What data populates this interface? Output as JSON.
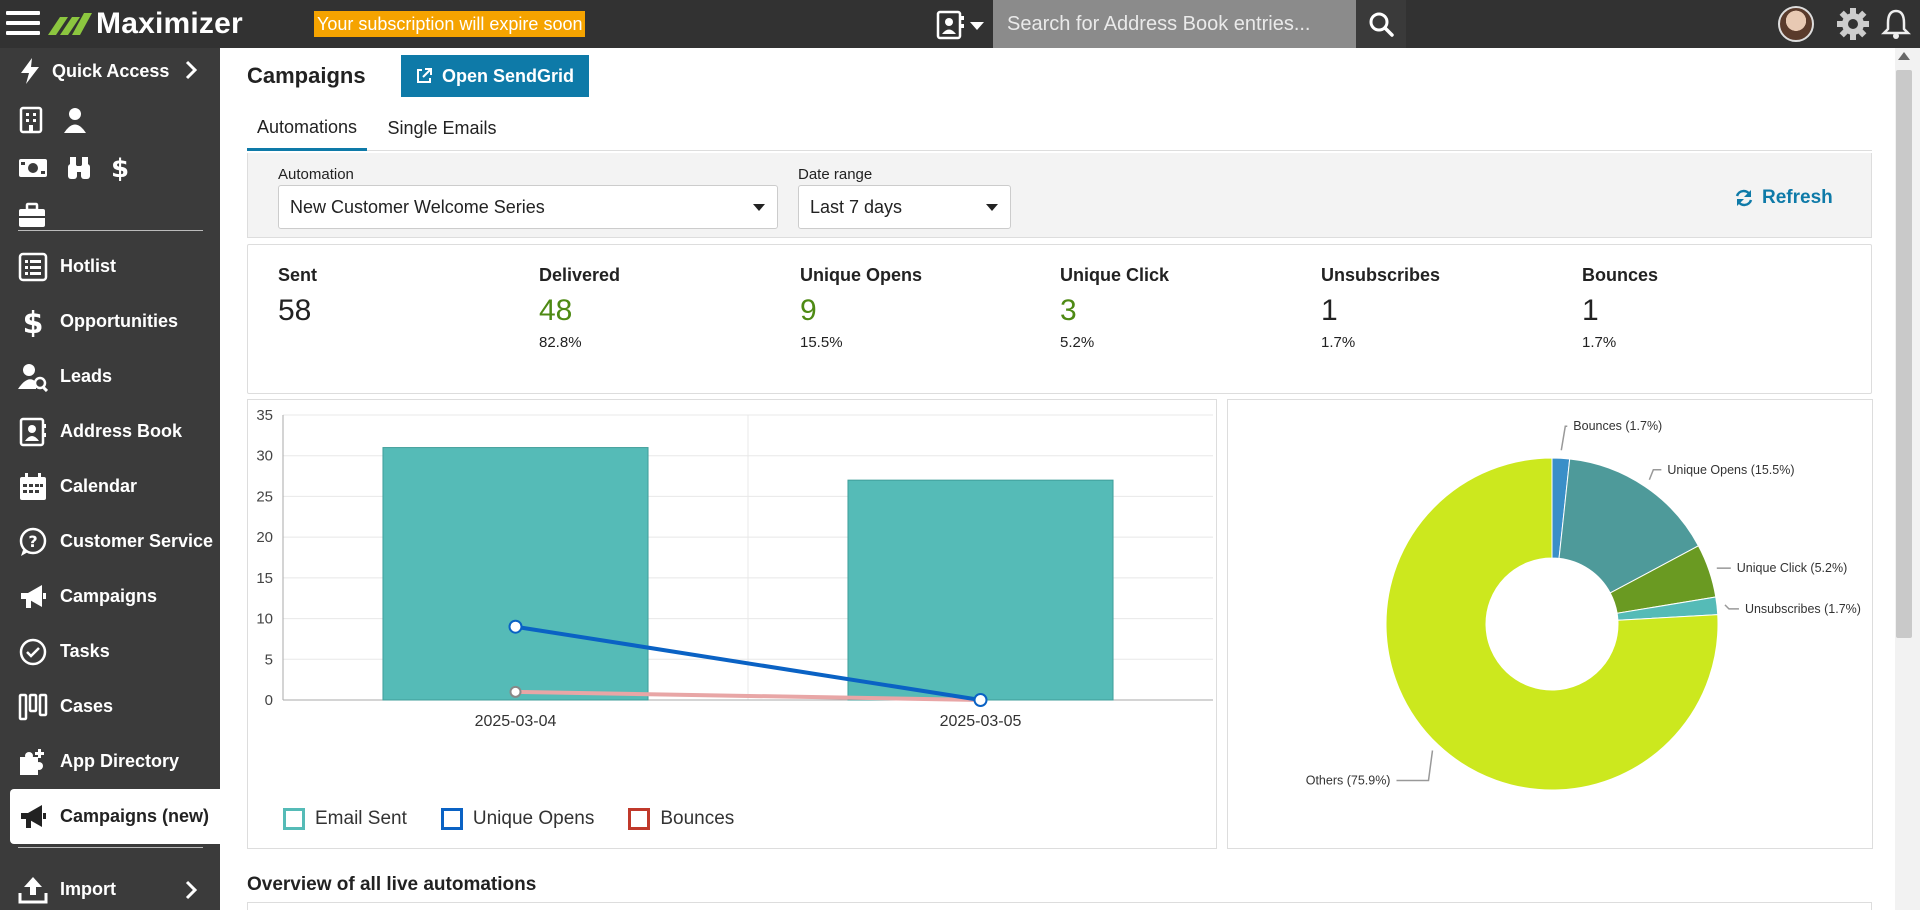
{
  "topbar": {
    "app_name": "Maximizer",
    "subscription_banner": "Your subscription will expire soon",
    "search_placeholder": "Search for Address Book entries..."
  },
  "sidebar": {
    "quick_access": "Quick Access",
    "items": [
      {
        "label": "Hotlist",
        "icon": "list-icon"
      },
      {
        "label": "Opportunities",
        "icon": "dollar-icon"
      },
      {
        "label": "Leads",
        "icon": "person-search-icon"
      },
      {
        "label": "Address Book",
        "icon": "address-book-icon"
      },
      {
        "label": "Calendar",
        "icon": "calendar-icon"
      },
      {
        "label": "Customer Service",
        "icon": "question-bubble-icon"
      },
      {
        "label": "Campaigns",
        "icon": "megaphone-icon"
      },
      {
        "label": "Tasks",
        "icon": "check-circle-icon"
      },
      {
        "label": "Cases",
        "icon": "cases-icon"
      },
      {
        "label": "App Directory",
        "icon": "puzzle-icon"
      },
      {
        "label": "Campaigns (new)",
        "icon": "megaphone-icon",
        "active": true
      },
      {
        "label": "Import",
        "icon": "upload-icon"
      }
    ]
  },
  "main": {
    "title": "Campaigns",
    "open_sendgrid": "Open SendGrid",
    "tabs": [
      {
        "label": "Automations",
        "active": true
      },
      {
        "label": "Single Emails"
      }
    ],
    "filters": {
      "automation_label": "Automation",
      "automation_value": "New Customer Welcome Series",
      "date_label": "Date range",
      "date_value": "Last 7 days",
      "refresh": "Refresh"
    },
    "stats": [
      {
        "label": "Sent",
        "value": "58",
        "pct": ""
      },
      {
        "label": "Delivered",
        "value": "48",
        "pct": "82.8%"
      },
      {
        "label": "Unique Opens",
        "value": "9",
        "pct": "15.5%"
      },
      {
        "label": "Unique Click",
        "value": "3",
        "pct": "5.2%"
      },
      {
        "label": "Unsubscribes",
        "value": "1",
        "pct": "1.7%"
      },
      {
        "label": "Bounces",
        "value": "1",
        "pct": "1.7%"
      }
    ],
    "overview_title": "Overview of all live automations"
  },
  "colors": {
    "accent": "#0e7aa8",
    "green": "#4e8a14",
    "bar_fill": "#55bbb7",
    "opens_line": "#0a62c4",
    "bounces_line": "#e8a6a6"
  },
  "chart_data": [
    {
      "type": "bar",
      "categories": [
        "2025-03-04",
        "2025-03-05"
      ],
      "ylim": [
        0,
        35
      ],
      "yticks": [
        "0",
        "5",
        "10",
        "15",
        "20",
        "25",
        "30",
        "35"
      ],
      "series": [
        {
          "name": "Email Sent",
          "kind": "bar",
          "values": [
            31,
            27
          ],
          "color": "#55bbb7"
        },
        {
          "name": "Unique Opens",
          "kind": "line",
          "values": [
            9,
            0
          ],
          "color": "#0a62c4"
        },
        {
          "name": "Bounces",
          "kind": "line",
          "values": [
            1,
            0
          ],
          "color": "#c0392b"
        }
      ],
      "legend": "bottom-left"
    },
    {
      "type": "pie",
      "donut": true,
      "slices": [
        {
          "label": "Bounces (1.7%)",
          "value": 1.7,
          "color": "#3a8fc8"
        },
        {
          "label": "Unique Opens (15.5%)",
          "value": 15.5,
          "color": "#4e9a9a"
        },
        {
          "label": "Unique Click (5.2%)",
          "value": 5.2,
          "color": "#6a9a22"
        },
        {
          "label": "Unsubscribes (1.7%)",
          "value": 1.7,
          "color": "#55bbb7"
        },
        {
          "label": "Others (75.9%)",
          "value": 75.9,
          "color": "#cce81e"
        }
      ]
    }
  ]
}
